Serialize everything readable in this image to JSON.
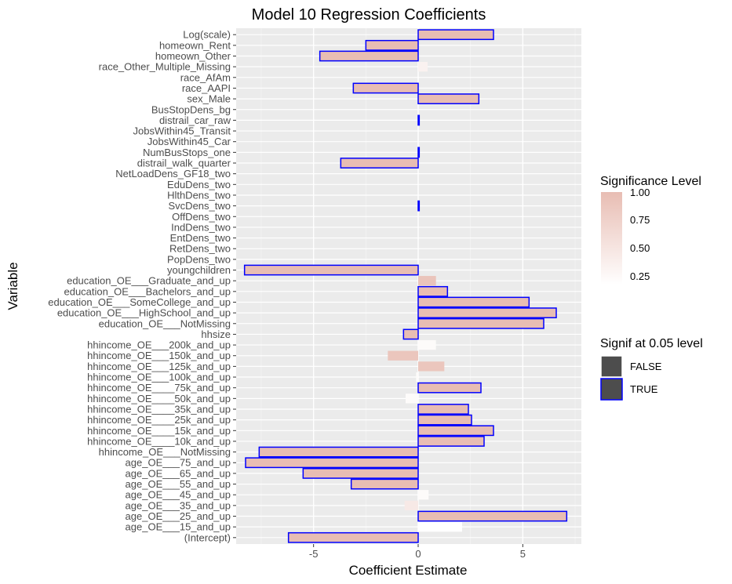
{
  "chart_data": {
    "type": "bar",
    "orientation": "horizontal",
    "title": "Model 10 Regression Coefficients",
    "xlabel": "Coefficient Estimate",
    "ylabel": "Variable",
    "xlim": [
      -8.7,
      7.8
    ],
    "xticks": [
      -5,
      0,
      5
    ],
    "xtick_labels": [
      "-5",
      "0",
      "5"
    ],
    "grid": true,
    "legend_position": "right",
    "categories": [
      "Log(scale)",
      "homeown_Rent",
      "homeown_Other",
      "race_Other_Multiple_Missing",
      "race_AfAm",
      "race_AAPI",
      "sex_Male",
      "BusStopDens_bg",
      "distrail_car_raw",
      "JobsWithin45_Transit",
      "JobsWithin45_Car",
      "NumBusStops_one",
      "distrail_walk_quarter",
      "NetLoadDens_GF18_two",
      "EduDens_two",
      "HlthDens_two",
      "SvcDens_two",
      "OffDens_two",
      "IndDens_two",
      "EntDens_two",
      "RetDens_two",
      "PopDens_two",
      "youngchildren",
      "education_OE___Graduate_and_up",
      "education_OE___Bachelors_and_up",
      "education_OE___SomeCollege_and_up",
      "education_OE___HighSchool_and_up",
      "education_OE___NotMissing",
      "hhsize",
      "hhincome_OE___200k_and_up",
      "hhincome_OE___150k_and_up",
      "hhincome_OE___125k_and_up",
      "hhincome_OE___100k_and_up",
      "hhincome_OE____75k_and_up",
      "hhincome_OE____50k_and_up",
      "hhincome_OE____35k_and_up",
      "hhincome_OE____25k_and_up",
      "hhincome_OE____15k_and_up",
      "hhincome_OE____10k_and_up",
      "hhincome_OE___NotMissing",
      "age_OE___75_and_up",
      "age_OE___65_and_up",
      "age_OE___55_and_up",
      "age_OE___45_and_up",
      "age_OE___35_and_up",
      "age_OE___25_and_up",
      "age_OE___15_and_up",
      "(Intercept)"
    ],
    "values": [
      3.6,
      -2.5,
      -4.7,
      0.45,
      0.0,
      -3.1,
      2.9,
      0.0,
      0.05,
      0.0,
      0.0,
      0.05,
      -3.7,
      0.0,
      0.0,
      0.0,
      0.05,
      0.0,
      0.0,
      0.0,
      0.0,
      0.0,
      -8.3,
      0.85,
      1.4,
      5.3,
      6.6,
      6.0,
      -0.7,
      0.85,
      -1.45,
      1.25,
      -0.1,
      3.0,
      -0.6,
      2.4,
      2.55,
      3.6,
      3.15,
      -7.6,
      -8.25,
      -5.5,
      -3.2,
      0.5,
      -0.65,
      7.1,
      2.1,
      -6.2
    ],
    "significance_level": [
      1.0,
      1.0,
      1.0,
      0.4,
      0.5,
      1.0,
      1.0,
      0.5,
      1.0,
      0.5,
      0.5,
      1.0,
      1.0,
      0.5,
      0.5,
      0.5,
      1.0,
      0.5,
      0.5,
      0.5,
      0.5,
      0.5,
      1.0,
      0.92,
      1.0,
      1.0,
      1.0,
      1.0,
      1.0,
      0.3,
      0.9,
      0.9,
      0.3,
      1.0,
      0.3,
      1.0,
      1.0,
      1.0,
      1.0,
      1.0,
      1.0,
      1.0,
      1.0,
      0.3,
      0.5,
      1.0,
      0.25,
      1.0
    ],
    "signif_005": [
      true,
      true,
      true,
      false,
      false,
      true,
      true,
      false,
      true,
      false,
      false,
      true,
      true,
      false,
      false,
      false,
      true,
      false,
      false,
      false,
      false,
      false,
      true,
      false,
      true,
      true,
      true,
      true,
      true,
      false,
      false,
      false,
      false,
      true,
      false,
      true,
      true,
      true,
      true,
      true,
      true,
      true,
      true,
      false,
      false,
      true,
      false,
      true
    ],
    "legend_fill": {
      "title": "Significance Level",
      "breaks": [
        "1.00",
        "0.75",
        "0.50",
        "0.25"
      ],
      "color_high": "#e8bdb3",
      "color_low": "#ffffff"
    },
    "legend_outline": {
      "title": "Signif at 0.05 level",
      "entries": [
        "FALSE",
        "TRUE"
      ],
      "colors": [
        "#ffffff",
        "#0000ff"
      ]
    }
  }
}
